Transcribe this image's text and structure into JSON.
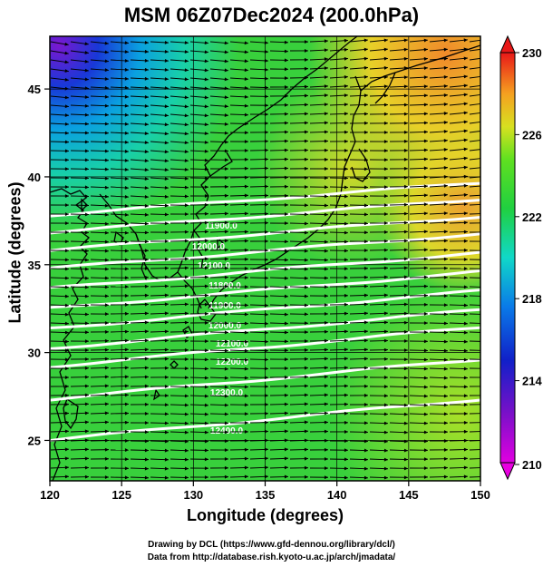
{
  "title": "MSM 06Z07Dec2024 (200.0hPa)",
  "xlabel": "Longitude (degrees)",
  "ylabel": "Latitude  (degrees)",
  "x_ticks": [
    "120",
    "125",
    "130",
    "135",
    "140",
    "145",
    "150"
  ],
  "y_ticks": [
    "25",
    "30",
    "35",
    "40",
    "45"
  ],
  "colorbar": {
    "ticks": [
      "230",
      "226",
      "222",
      "218",
      "214",
      "210"
    ],
    "min": 210,
    "max": 230
  },
  "contour_labels": [
    "11900.0",
    "12000.0",
    "12100.0",
    "11800.0",
    "11900.0",
    "12000.0",
    "12100.0",
    "12200.0",
    "12300.0",
    "12400.0"
  ],
  "credits": {
    "line1": "Drawing by DCL (https://www.gfd-dennou.org/library/dcl/)",
    "line2": "Data from http://database.rish.kyoto-u.ac.jp/arch/jmadata/"
  },
  "colors": {
    "field_main": "#33d13a",
    "field_warm": "#f5a23a",
    "field_cold": "#1a8ae0",
    "contour": "#ffffff",
    "vector": "#000000"
  },
  "map_extent": {
    "lon": [
      120,
      150
    ],
    "lat": [
      22.7,
      48
    ]
  }
}
